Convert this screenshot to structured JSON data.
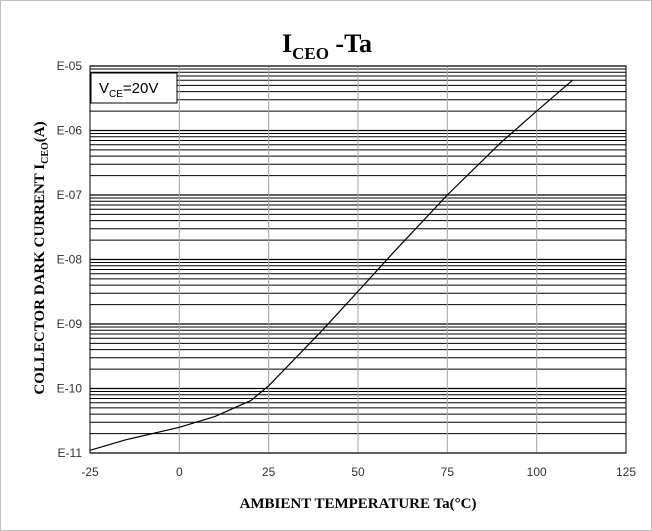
{
  "chart_data": {
    "type": "line",
    "title": {
      "main": "I",
      "sub": "CEO",
      "rest": " -Ta"
    },
    "xlabel": "AMBIENT TEMPERATURE Ta(°C)",
    "ylabel": {
      "main": "COLLECTOR DARK CURRENT  I",
      "sub": "CEO",
      "rest": "(A)"
    },
    "annotation": {
      "main": "V",
      "sub": "CE",
      "rest": "=20V"
    },
    "x_ticks": [
      "-25",
      "0",
      "25",
      "50",
      "75",
      "100",
      "125"
    ],
    "y_ticks": [
      "E-11",
      "E-10",
      "E-09",
      "E-08",
      "E-07",
      "E-06",
      "E-05"
    ],
    "xlim": [
      -25,
      125
    ],
    "ylim": [
      1e-11,
      1e-05
    ],
    "y_scale": "log",
    "grid": true,
    "series": [
      {
        "x": [
          -25,
          -15,
          0,
          10,
          20,
          25,
          40,
          50,
          60,
          75,
          90,
          100,
          110
        ],
        "y": [
          1.1e-11,
          1.6e-11,
          2.5e-11,
          3.7e-11,
          6.5e-11,
          1.1e-10,
          8e-10,
          3.2e-09,
          1.3e-08,
          1e-07,
          6.5e-07,
          2e-06,
          6e-06
        ]
      }
    ]
  }
}
